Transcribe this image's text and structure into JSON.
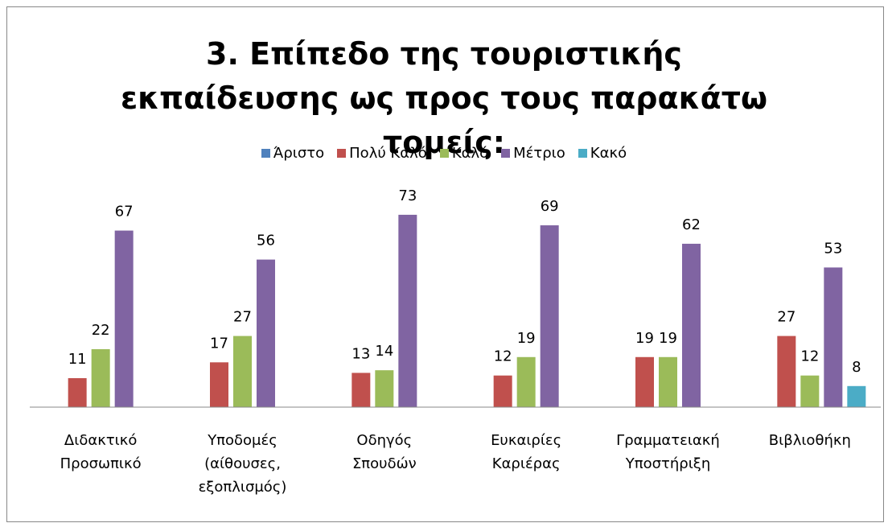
{
  "chart_data": {
    "type": "bar",
    "title": "3. Επίπεδο της τουριστικής εκπαίδευσης ως προς τους παρακάτω τομείς:",
    "categories": [
      "Διδακτικό Προσωπικό",
      "Υποδομές (αίθουσες, εξοπλισμός)",
      "Οδηγός Σπουδών",
      "Ευκαιρίες Καριέρας",
      "Γραμματειακή Υποστήριξη",
      "Βιβλιοθήκη"
    ],
    "series": [
      {
        "name": "Άριστο",
        "color": "#4f81bd",
        "values": [
          null,
          null,
          null,
          null,
          null,
          null
        ]
      },
      {
        "name": "Πολύ Καλό",
        "color": "#c0504d",
        "values": [
          11,
          17,
          13,
          12,
          19,
          27
        ]
      },
      {
        "name": "Καλό",
        "color": "#9bbb59",
        "values": [
          22,
          27,
          14,
          19,
          19,
          12
        ]
      },
      {
        "name": "Μέτριο",
        "color": "#8064a2",
        "values": [
          67,
          56,
          73,
          69,
          62,
          53
        ]
      },
      {
        "name": "Κακό",
        "color": "#4bacc6",
        "values": [
          null,
          null,
          null,
          null,
          null,
          8
        ]
      }
    ],
    "ylim": [
      0,
      80
    ],
    "grid": false,
    "legend": "top"
  }
}
